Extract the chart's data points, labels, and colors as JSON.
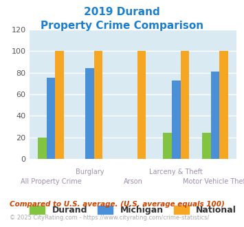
{
  "title_line1": "2019 Durand",
  "title_line2": "Property Crime Comparison",
  "title_color": "#1a7fcc",
  "categories": [
    "All Property Crime",
    "Burglary",
    "Arson",
    "Larceny & Theft",
    "Motor Vehicle Theft"
  ],
  "groups": [
    {
      "label": "Durand",
      "color": "#82c341",
      "values": [
        20,
        0,
        0,
        24,
        24
      ]
    },
    {
      "label": "Michigan",
      "color": "#4a90d9",
      "values": [
        75,
        84,
        0,
        73,
        81
      ]
    },
    {
      "label": "National",
      "color": "#f5a623",
      "values": [
        100,
        100,
        100,
        100,
        100
      ]
    }
  ],
  "ylim": [
    0,
    120
  ],
  "yticks": [
    0,
    20,
    40,
    60,
    80,
    100,
    120
  ],
  "bg_color": "#daeaf3",
  "fig_bg": "#ffffff",
  "label_color": "#9e8faf",
  "grid_color": "#ffffff",
  "footnote1": "Compared to U.S. average. (U.S. average equals 100)",
  "footnote2": "© 2025 CityRating.com - https://www.cityrating.com/crime-statistics/",
  "footnote1_color": "#cc4400",
  "footnote2_color": "#aaaaaa",
  "legend_text_color": "#333333"
}
